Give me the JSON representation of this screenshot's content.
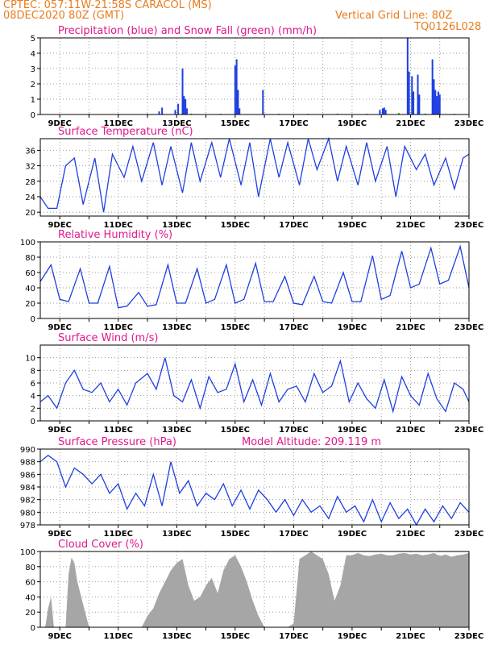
{
  "header": {
    "line1": "CPTEC:   057:11W-21:58S   CARACOL (MS)",
    "line2": "08DEC2020 80Z (GMT)",
    "grid_note": "Vertical Grid Line: 80Z",
    "code": "TQ0126L028"
  },
  "colors": {
    "header": "#e87c1e",
    "panel_title": "#e0188c",
    "line": "#1f3fe0",
    "snow": "#22aa22",
    "cloud": "#a6a6a6",
    "grid": "#9a9a9a"
  },
  "chart_data": [
    {
      "type": "bar",
      "id": "precip",
      "title": "Precipitation (blue) and Snow Fall (green) (mm/h)",
      "x_ticks": [
        "9DEC",
        "11DEC",
        "13DEC",
        "15DEC",
        "17DEC",
        "19DEC",
        "21DEC",
        "23DEC"
      ],
      "ylim": [
        0,
        5
      ],
      "y_ticks": [
        0,
        1,
        2,
        3,
        4,
        5
      ],
      "series": [
        {
          "color": "blue",
          "points": [
            [
              12.4,
              0.2
            ],
            [
              12.5,
              0.45
            ],
            [
              12.95,
              0.3
            ],
            [
              13.05,
              0.7
            ],
            [
              13.2,
              3.0
            ],
            [
              13.25,
              1.2
            ],
            [
              13.3,
              1.0
            ],
            [
              13.35,
              0.4
            ],
            [
              15.0,
              3.2
            ],
            [
              15.05,
              3.6
            ],
            [
              15.1,
              1.6
            ],
            [
              15.15,
              0.4
            ],
            [
              15.95,
              1.6
            ],
            [
              19.95,
              0.3
            ],
            [
              20.05,
              0.4
            ],
            [
              20.1,
              0.45
            ],
            [
              20.15,
              0.3
            ],
            [
              20.9,
              5.0
            ],
            [
              20.95,
              2.8
            ],
            [
              21.05,
              2.5
            ],
            [
              21.1,
              1.5
            ],
            [
              21.25,
              2.6
            ],
            [
              21.3,
              1.3
            ],
            [
              21.75,
              3.6
            ],
            [
              21.8,
              2.3
            ],
            [
              21.85,
              1.6
            ],
            [
              21.9,
              1.2
            ],
            [
              21.95,
              1.5
            ],
            [
              22.0,
              1.3
            ]
          ]
        },
        {
          "color": "green",
          "points": [
            [
              10.0,
              0.05
            ],
            [
              11.0,
              0.05
            ],
            [
              12.0,
              0.05
            ],
            [
              13.5,
              0.06
            ],
            [
              14.5,
              0.05
            ],
            [
              16.5,
              0.05
            ],
            [
              17.5,
              0.05
            ],
            [
              18.5,
              0.06
            ],
            [
              19.5,
              0.05
            ],
            [
              20.6,
              0.1
            ],
            [
              21.5,
              0.06
            ],
            [
              22.5,
              0.05
            ]
          ]
        }
      ]
    },
    {
      "type": "line",
      "id": "temperature",
      "title": "Surface Temperature (nC)",
      "x_ticks": [
        "9DEC",
        "11DEC",
        "13DEC",
        "15DEC",
        "17DEC",
        "19DEC",
        "21DEC",
        "23DEC"
      ],
      "ylim": [
        19,
        39
      ],
      "y_ticks": [
        20,
        24,
        28,
        32,
        36
      ],
      "x": [
        8.33,
        8.6,
        8.9,
        9.2,
        9.5,
        9.8,
        10.2,
        10.5,
        10.8,
        11.2,
        11.5,
        11.8,
        12.2,
        12.5,
        12.8,
        13.2,
        13.5,
        13.8,
        14.2,
        14.5,
        14.8,
        15.2,
        15.5,
        15.8,
        16.2,
        16.5,
        16.8,
        17.2,
        17.5,
        17.8,
        18.2,
        18.5,
        18.8,
        19.2,
        19.5,
        19.8,
        20.2,
        20.5,
        20.8,
        21.2,
        21.5,
        21.8,
        22.2,
        22.5,
        22.8,
        23.0
      ],
      "y": [
        24.0,
        21.0,
        21.0,
        32.0,
        34.0,
        22.0,
        34.0,
        20.0,
        35.0,
        29.0,
        37.0,
        28.0,
        38.0,
        27.0,
        37.0,
        25.0,
        38.0,
        28.0,
        38.0,
        29.0,
        39.0,
        27.0,
        38.0,
        24.0,
        39.0,
        29.0,
        38.0,
        27.0,
        39.0,
        31.0,
        39.0,
        28.0,
        37.0,
        27.0,
        38.0,
        28.0,
        37.0,
        24.0,
        37.0,
        31.0,
        35.0,
        27.0,
        34.0,
        26.0,
        34.0,
        35.0
      ]
    },
    {
      "type": "line",
      "id": "humidity",
      "title": "Relative Humidity (%)",
      "x_ticks": [
        "9DEC",
        "11DEC",
        "13DEC",
        "15DEC",
        "17DEC",
        "19DEC",
        "21DEC",
        "23DEC"
      ],
      "ylim": [
        0,
        100
      ],
      "y_ticks": [
        0,
        20,
        40,
        60,
        80,
        100
      ],
      "x": [
        8.33,
        8.7,
        9.0,
        9.3,
        9.7,
        10.0,
        10.3,
        10.7,
        11.0,
        11.3,
        11.7,
        12.0,
        12.3,
        12.7,
        13.0,
        13.3,
        13.7,
        14.0,
        14.3,
        14.7,
        15.0,
        15.3,
        15.7,
        16.0,
        16.3,
        16.7,
        17.0,
        17.3,
        17.7,
        18.0,
        18.3,
        18.7,
        19.0,
        19.3,
        19.7,
        20.0,
        20.3,
        20.7,
        21.0,
        21.3,
        21.7,
        22.0,
        22.3,
        22.7,
        23.0
      ],
      "y": [
        48.0,
        70.0,
        25.0,
        22.0,
        65.0,
        20.0,
        20.0,
        68.0,
        14.0,
        16.0,
        34.0,
        16.0,
        18.0,
        70.0,
        20.0,
        20.0,
        65.0,
        20.0,
        25.0,
        70.0,
        20.0,
        25.0,
        72.0,
        22.0,
        22.0,
        55.0,
        20.0,
        18.0,
        55.0,
        22.0,
        20.0,
        60.0,
        22.0,
        22.0,
        82.0,
        25.0,
        30.0,
        88.0,
        40.0,
        45.0,
        92.0,
        45.0,
        50.0,
        94.0,
        40.0
      ]
    },
    {
      "type": "line",
      "id": "wind",
      "title": "Surface Wind (m/s)",
      "x_ticks": [
        "9DEC",
        "11DEC",
        "13DEC",
        "15DEC",
        "17DEC",
        "19DEC",
        "21DEC",
        "23DEC"
      ],
      "ylim": [
        0,
        12
      ],
      "y_ticks": [
        0,
        2,
        4,
        6,
        8,
        10
      ],
      "x": [
        8.33,
        8.6,
        8.9,
        9.2,
        9.5,
        9.8,
        10.1,
        10.4,
        10.7,
        11.0,
        11.3,
        11.6,
        12.0,
        12.3,
        12.6,
        12.9,
        13.2,
        13.5,
        13.8,
        14.1,
        14.4,
        14.7,
        15.0,
        15.3,
        15.6,
        15.9,
        16.2,
        16.5,
        16.8,
        17.1,
        17.4,
        17.7,
        18.0,
        18.3,
        18.6,
        18.9,
        19.2,
        19.5,
        19.8,
        20.1,
        20.4,
        20.7,
        21.0,
        21.3,
        21.6,
        21.9,
        22.2,
        22.5,
        22.8,
        23.0
      ],
      "y": [
        3.0,
        4.0,
        2.0,
        6.0,
        8.0,
        5.0,
        4.5,
        6.0,
        3.0,
        5.0,
        2.5,
        6.0,
        7.5,
        5.0,
        10.0,
        4.0,
        3.0,
        6.5,
        2.0,
        7.0,
        4.5,
        5.0,
        9.0,
        3.0,
        6.5,
        2.5,
        7.5,
        3.0,
        5.0,
        5.5,
        3.0,
        7.5,
        4.5,
        5.5,
        9.5,
        3.0,
        6.0,
        3.5,
        2.0,
        6.5,
        1.5,
        7.0,
        4.0,
        2.5,
        7.5,
        3.5,
        1.5,
        6.0,
        5.0,
        3.0
      ]
    },
    {
      "type": "line",
      "id": "pressure",
      "title": "Surface Pressure (hPa)",
      "annotation": "Model Altitude: 209.119  m",
      "x_ticks": [
        "9DEC",
        "11DEC",
        "13DEC",
        "15DEC",
        "17DEC",
        "19DEC",
        "21DEC",
        "23DEC"
      ],
      "ylim": [
        978,
        990
      ],
      "y_ticks": [
        978,
        980,
        982,
        984,
        986,
        988,
        990
      ],
      "x": [
        8.33,
        8.6,
        8.9,
        9.2,
        9.5,
        9.8,
        10.1,
        10.4,
        10.7,
        11.0,
        11.3,
        11.6,
        11.9,
        12.2,
        12.5,
        12.8,
        13.1,
        13.4,
        13.7,
        14.0,
        14.3,
        14.6,
        14.9,
        15.2,
        15.5,
        15.8,
        16.1,
        16.4,
        16.7,
        17.0,
        17.3,
        17.6,
        17.9,
        18.2,
        18.5,
        18.8,
        19.1,
        19.4,
        19.7,
        20.0,
        20.3,
        20.6,
        20.9,
        21.2,
        21.5,
        21.8,
        22.1,
        22.4,
        22.7,
        23.0
      ],
      "y": [
        988.0,
        989.0,
        988.0,
        984.0,
        987.0,
        986.0,
        984.5,
        986.0,
        983.0,
        984.5,
        980.5,
        983.0,
        981.0,
        986.0,
        981.0,
        988.0,
        983.0,
        985.0,
        981.0,
        983.0,
        982.0,
        984.5,
        981.0,
        983.5,
        980.5,
        983.5,
        982.0,
        980.0,
        982.0,
        979.5,
        982.0,
        980.0,
        981.0,
        979.0,
        982.5,
        980.0,
        981.0,
        978.5,
        982.0,
        978.5,
        981.5,
        979.0,
        980.5,
        978.0,
        980.5,
        978.5,
        981.0,
        979.0,
        981.5,
        980.0
      ]
    },
    {
      "type": "area",
      "id": "cloud",
      "title": "Cloud Cover (%)",
      "x_ticks": [
        "9DEC",
        "11DEC",
        "13DEC",
        "15DEC",
        "17DEC",
        "19DEC",
        "21DEC",
        "23DEC"
      ],
      "ylim": [
        0,
        100
      ],
      "y_ticks": [
        0,
        20,
        40,
        60,
        80,
        100
      ],
      "x": [
        8.33,
        8.5,
        8.6,
        8.7,
        8.8,
        9.0,
        9.2,
        9.3,
        9.4,
        9.5,
        9.6,
        9.8,
        10.0,
        10.2,
        10.4,
        10.6,
        10.8,
        11.0,
        11.2,
        11.4,
        11.6,
        11.8,
        12.0,
        12.2,
        12.4,
        12.6,
        12.8,
        13.0,
        13.2,
        13.4,
        13.6,
        13.8,
        14.0,
        14.2,
        14.4,
        14.6,
        14.8,
        15.0,
        15.2,
        15.4,
        15.6,
        15.8,
        16.0,
        16.2,
        16.4,
        16.6,
        16.8,
        17.0,
        17.2,
        17.4,
        17.6,
        17.8,
        18.0,
        18.2,
        18.4,
        18.6,
        18.8,
        19.0,
        19.2,
        19.4,
        19.6,
        19.8,
        20.0,
        20.2,
        20.4,
        20.6,
        20.8,
        21.0,
        21.2,
        21.4,
        21.6,
        21.8,
        22.0,
        22.2,
        22.4,
        22.6,
        22.8,
        23.0
      ],
      "y": [
        0,
        0,
        25,
        40,
        0,
        0,
        0,
        70,
        92,
        85,
        60,
        30,
        0,
        0,
        0,
        0,
        0,
        0,
        0,
        0,
        0,
        0,
        15,
        25,
        45,
        60,
        75,
        85,
        90,
        55,
        35,
        40,
        55,
        65,
        45,
        75,
        90,
        95,
        80,
        60,
        35,
        15,
        0,
        0,
        0,
        0,
        0,
        5,
        90,
        95,
        100,
        95,
        90,
        70,
        35,
        55,
        95,
        95,
        98,
        95,
        94,
        96,
        97,
        95,
        95,
        97,
        98,
        96,
        97,
        95,
        96,
        98,
        94,
        96,
        93,
        95,
        96,
        98
      ]
    }
  ]
}
